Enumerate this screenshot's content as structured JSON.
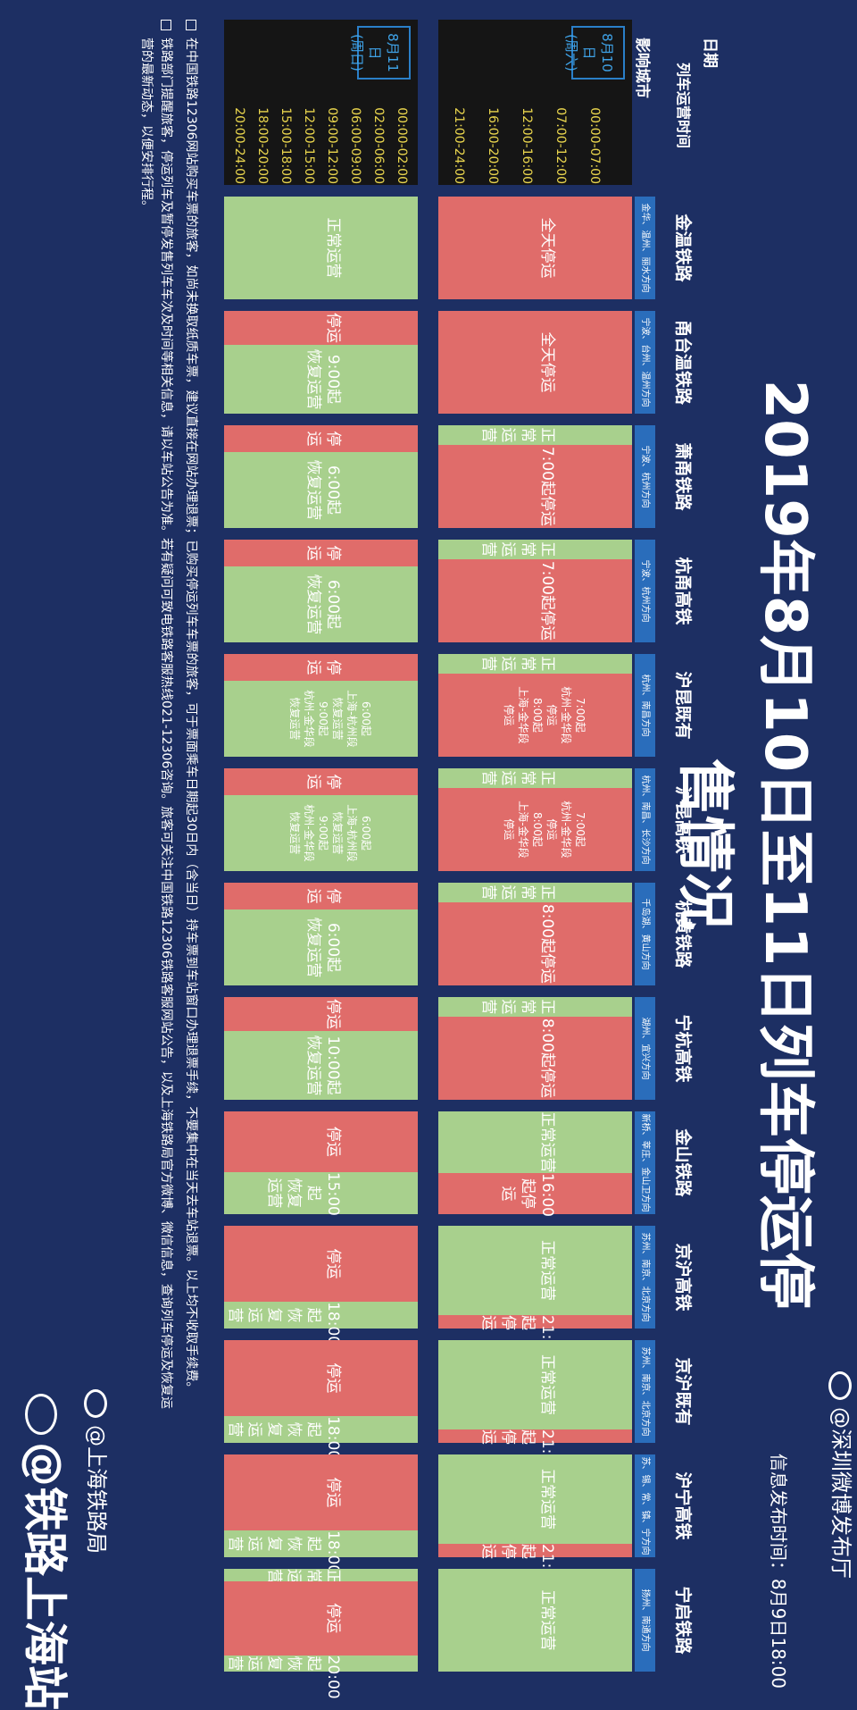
{
  "title": "2019年8月10日至11日列车停运停售情况",
  "release": "信息发布时间：8月9日18:00",
  "header": {
    "date": "日期",
    "time": "列车运营时间",
    "city": "影响城市"
  },
  "days": [
    {
      "label": "8月10日\n(周六)",
      "slots": [
        "00:00-07:00",
        "07:00-12:00",
        "12:00-16:00",
        "16:00-20:00",
        "21:00-24:00"
      ]
    },
    {
      "label": "8月11日\n(周日)",
      "slots": [
        "00:00-02:00",
        "02:00-06:00",
        "06:00-09:00",
        "09:00-12:00",
        "12:00-15:00",
        "15:00-18:00",
        "18:00-20:00",
        "20:00-24:00"
      ]
    }
  ],
  "lines": [
    {
      "name": "金温铁路",
      "cities": "金华、温州、丽水方向",
      "d1": [
        {
          "s": "red",
          "w": 100,
          "t": "全天停运"
        }
      ],
      "d2": [
        {
          "s": "green",
          "w": 100,
          "t": "正常运营"
        }
      ]
    },
    {
      "name": "甬台温铁路",
      "cities": "宁波、台州、温州方向",
      "d1": [
        {
          "s": "red",
          "w": 100,
          "t": "全天停运"
        }
      ],
      "d2": [
        {
          "s": "red",
          "w": 33,
          "t": "停运"
        },
        {
          "s": "green",
          "w": 67,
          "t": "9:00起\n恢复运营"
        }
      ]
    },
    {
      "name": "萧甬铁路",
      "cities": "宁波、杭州方向",
      "d1": [
        {
          "s": "green",
          "w": 19,
          "t": "正常运营"
        },
        {
          "s": "red",
          "w": 81,
          "t": "7:00起停运"
        }
      ],
      "d2": [
        {
          "s": "red",
          "w": 26,
          "t": "停运"
        },
        {
          "s": "green",
          "w": 74,
          "t": "6:00起\n恢复运营"
        }
      ]
    },
    {
      "name": "杭甬高铁",
      "cities": "宁波、杭州方向",
      "d1": [
        {
          "s": "green",
          "w": 19,
          "t": "正常运营"
        },
        {
          "s": "red",
          "w": 81,
          "t": "7:00起停运"
        }
      ],
      "d2": [
        {
          "s": "red",
          "w": 26,
          "t": "停运"
        },
        {
          "s": "green",
          "w": 74,
          "t": "6:00起\n恢复运营"
        }
      ]
    },
    {
      "name": "沪昆既有",
      "cities": "杭州、南昌方向",
      "d1": [
        {
          "s": "green",
          "w": 19,
          "t": "正常运营"
        },
        {
          "s": "red",
          "w": 81,
          "t": "7:00起\n杭州-金华段\n停运\n8:00起\n上海-金华段\n停运",
          "small": true
        }
      ],
      "d2": [
        {
          "s": "red",
          "w": 26,
          "t": "停运"
        },
        {
          "s": "green",
          "w": 74,
          "t": "6:00起\n上海-杭州段\n恢复运营\n9:00起\n杭州-金华段\n恢复运营",
          "small": true
        }
      ]
    },
    {
      "name": "沪昆高铁",
      "cities": "杭州、南昌、长沙方向",
      "d1": [
        {
          "s": "green",
          "w": 19,
          "t": "正常运营"
        },
        {
          "s": "red",
          "w": 81,
          "t": "7:00起\n杭州-金华段\n停运\n8:00起\n上海-金华段\n停运",
          "small": true
        }
      ],
      "d2": [
        {
          "s": "red",
          "w": 26,
          "t": "停运"
        },
        {
          "s": "green",
          "w": 74,
          "t": "6:00起\n上海-杭州段\n恢复运营\n9:00起\n杭州-金华段\n恢复运营",
          "small": true
        }
      ]
    },
    {
      "name": "杭黄铁路",
      "cities": "千岛湖、黄山方向",
      "d1": [
        {
          "s": "green",
          "w": 19,
          "t": "正常运营"
        },
        {
          "s": "red",
          "w": 81,
          "t": "8:00起停运"
        }
      ],
      "d2": [
        {
          "s": "red",
          "w": 26,
          "t": "停运"
        },
        {
          "s": "green",
          "w": 74,
          "t": "6:00起\n恢复运营"
        }
      ]
    },
    {
      "name": "宁杭高铁",
      "cities": "湖州、宜兴方向",
      "d1": [
        {
          "s": "green",
          "w": 19,
          "t": "正常运营"
        },
        {
          "s": "red",
          "w": 81,
          "t": "8:00起停运"
        }
      ],
      "d2": [
        {
          "s": "red",
          "w": 33,
          "t": "停运"
        },
        {
          "s": "green",
          "w": 67,
          "t": "10:00起\n恢复运营"
        }
      ]
    },
    {
      "name": "金山铁路",
      "cities": "新桥、莘庄、金山卫方向",
      "d1": [
        {
          "s": "green",
          "w": 60,
          "t": "正常运营"
        },
        {
          "s": "red",
          "w": 40,
          "t": "16:00起停运"
        }
      ],
      "d2": [
        {
          "s": "red",
          "w": 59,
          "t": "停运"
        },
        {
          "s": "green",
          "w": 41,
          "t": "15:00起\n恢复运营"
        }
      ]
    },
    {
      "name": "京沪高铁",
      "cities": "苏州、南京、北京方向",
      "d1": [
        {
          "s": "green",
          "w": 87,
          "t": "正常运营"
        },
        {
          "s": "red",
          "w": 13,
          "t": "21:00起停运"
        }
      ],
      "d2": [
        {
          "s": "red",
          "w": 74,
          "t": "停运"
        },
        {
          "s": "green",
          "w": 26,
          "t": "18:00起\n恢复运营"
        }
      ]
    },
    {
      "name": "京沪既有",
      "cities": "苏州、南京、北京方向",
      "d1": [
        {
          "s": "green",
          "w": 87,
          "t": "正常运营"
        },
        {
          "s": "red",
          "w": 13,
          "t": "21:00起停运"
        }
      ],
      "d2": [
        {
          "s": "red",
          "w": 74,
          "t": "停运"
        },
        {
          "s": "green",
          "w": 26,
          "t": "18:00起\n恢复运营"
        }
      ]
    },
    {
      "name": "沪宁高铁",
      "cities": "苏、锡、常、镇、宁方向",
      "d1": [
        {
          "s": "green",
          "w": 87,
          "t": "正常运营"
        },
        {
          "s": "red",
          "w": 13,
          "t": "21:00起停运"
        }
      ],
      "d2": [
        {
          "s": "red",
          "w": 74,
          "t": "停运"
        },
        {
          "s": "green",
          "w": 26,
          "t": "18:00起\n恢复运营"
        }
      ]
    },
    {
      "name": "宁启铁路",
      "cities": "扬州、南通方向",
      "d1": [
        {
          "s": "green",
          "w": 100,
          "t": "正常运营"
        }
      ],
      "d2": [
        {
          "s": "green",
          "w": 12,
          "t": "正常运营"
        },
        {
          "s": "red",
          "w": 72,
          "t": "停运"
        },
        {
          "s": "green",
          "w": 16,
          "t": "20:00起\n恢复运营"
        }
      ]
    }
  ],
  "notes": [
    "在中国铁路12306网站购买车票的旅客，如尚未换取纸质车票，建议直接在网站办理退票；已购买停运列车车票的旅客，可于票面乘车日期起30日内（含当日）持车票到车站窗口办理退票手续，不要集中在当天去车站退票。以上均不收取手续费。",
    "铁路部门提醒旅客，停运列车及暂停发售列车车次及时间等相关信息，请以车站公告为准。若有疑问可致电铁路客服热线021-12306咨询。旅客可关注中国铁路12306铁路客服网站公告，以及上海铁路局官方微博、微信信息，查询列车停运及恢复运营的最新动态，以便安排行程。"
  ],
  "handles": {
    "shanghai_bureau": "@上海铁路局",
    "shenzhen": "@深圳微博发布厅",
    "big": "@铁路上海站"
  },
  "watermark": "@铁路上海站"
}
